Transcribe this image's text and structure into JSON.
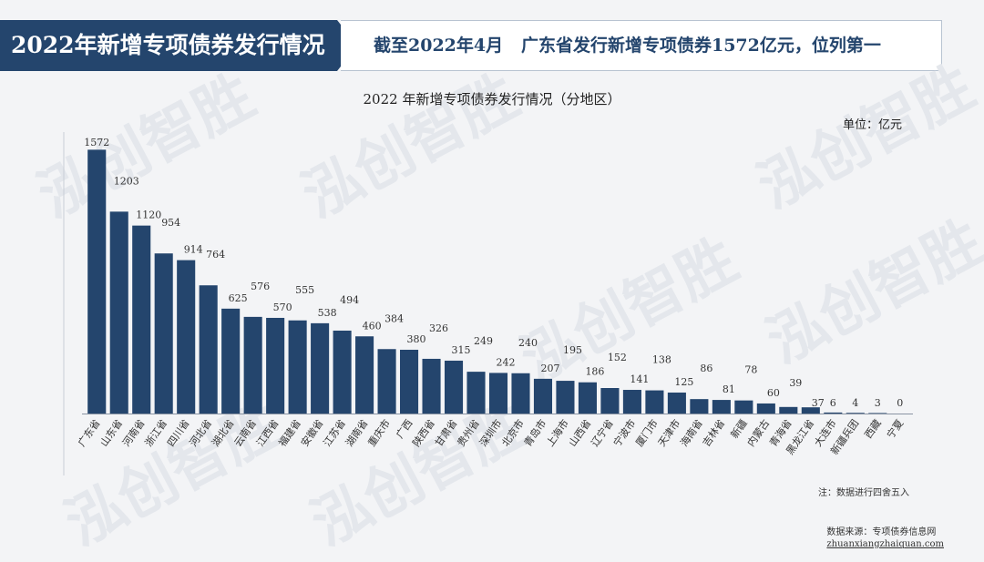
{
  "header": {
    "title": "2022年新增专项债券发行情况",
    "subtitle_prefix": "截至2022年4月",
    "subtitle_main": "广东省发行新增专项债券1572亿元，位列第一"
  },
  "watermark": "泓创智胜",
  "chart_data": {
    "type": "bar",
    "title": "2022 年新增专项债券发行情况（分地区）",
    "unit_label": "单位：亿元",
    "categories": [
      "广东省",
      "山东省",
      "河南省",
      "浙江省",
      "四川省",
      "河北省",
      "湖北省",
      "云南省",
      "江西省",
      "福建省",
      "安徽省",
      "江苏省",
      "湖南省",
      "重庆市",
      "广西",
      "陕西省",
      "甘肃省",
      "贵州省",
      "深圳市",
      "北京市",
      "青岛市",
      "上海市",
      "山西省",
      "辽宁省",
      "宁波市",
      "厦门市",
      "天津市",
      "海南省",
      "吉林省",
      "新疆",
      "内蒙古",
      "青海省",
      "黑龙江省",
      "大连市",
      "新疆兵团",
      "西藏",
      "宁夏"
    ],
    "values": [
      1572,
      1203,
      1120,
      954,
      914,
      764,
      625,
      576,
      570,
      555,
      538,
      494,
      460,
      384,
      380,
      326,
      315,
      249,
      242,
      240,
      207,
      195,
      186,
      152,
      141,
      138,
      125,
      86,
      81,
      78,
      60,
      39,
      37,
      6,
      4,
      3,
      0
    ],
    "bar_color": "#24456d",
    "ylim": [
      0,
      1650
    ],
    "note": "注：数据进行四舍五入"
  },
  "footer": {
    "source_label": "数据来源：专项债券信息网",
    "source_url": "zhuanxiangzhaiquan.com"
  },
  "colors": {
    "brand": "#24456d",
    "background": "#f3f4f6"
  }
}
